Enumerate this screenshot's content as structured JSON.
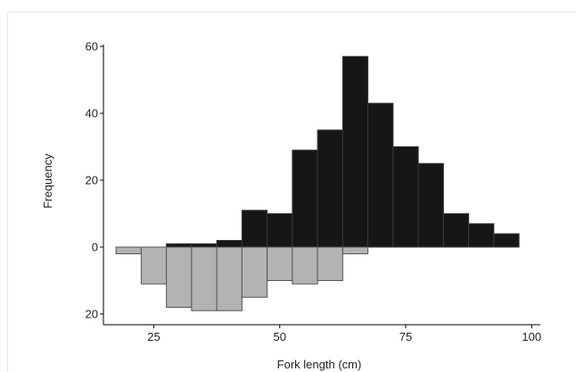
{
  "chart_data": {
    "type": "bar",
    "subtype": "back-to-back histogram",
    "xlabel": "Fork length (cm)",
    "ylabel": "Frequency",
    "xlim": [
      15,
      100
    ],
    "ylim": [
      -20,
      60
    ],
    "x_ticks": [
      25,
      50,
      75,
      100
    ],
    "y_ticks": [
      {
        "value": 60,
        "label": "60"
      },
      {
        "value": 40,
        "label": "40"
      },
      {
        "value": 20,
        "label": "20"
      },
      {
        "value": 0,
        "label": "0"
      },
      {
        "value": -20,
        "label": "20"
      }
    ],
    "bin_width": 5,
    "series": [
      {
        "color": "#161616",
        "direction": "up",
        "bins": [
          {
            "x0": 27.5,
            "value": 1
          },
          {
            "x0": 32.5,
            "value": 1
          },
          {
            "x0": 37.5,
            "value": 2
          },
          {
            "x0": 42.5,
            "value": 11
          },
          {
            "x0": 47.5,
            "value": 10
          },
          {
            "x0": 52.5,
            "value": 29
          },
          {
            "x0": 57.5,
            "value": 35
          },
          {
            "x0": 62.5,
            "value": 57
          },
          {
            "x0": 67.5,
            "value": 43
          },
          {
            "x0": 72.5,
            "value": 30
          },
          {
            "x0": 77.5,
            "value": 25
          },
          {
            "x0": 82.5,
            "value": 10
          },
          {
            "x0": 87.5,
            "value": 7
          },
          {
            "x0": 92.5,
            "value": 4
          }
        ]
      },
      {
        "color": "#b3b3b3",
        "direction": "down",
        "bins": [
          {
            "x0": 17.5,
            "value": 2
          },
          {
            "x0": 22.5,
            "value": 11
          },
          {
            "x0": 27.5,
            "value": 18
          },
          {
            "x0": 32.5,
            "value": 19
          },
          {
            "x0": 37.5,
            "value": 19
          },
          {
            "x0": 42.5,
            "value": 15
          },
          {
            "x0": 47.5,
            "value": 10
          },
          {
            "x0": 52.5,
            "value": 11
          },
          {
            "x0": 57.5,
            "value": 10
          },
          {
            "x0": 62.5,
            "value": 2
          }
        ]
      }
    ],
    "grid": false,
    "legend": "none"
  }
}
